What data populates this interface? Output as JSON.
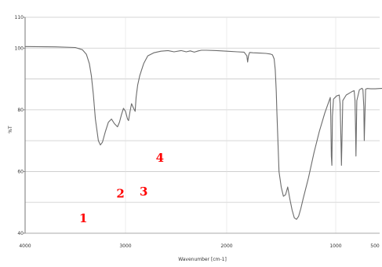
{
  "chart_data": {
    "type": "line",
    "xlabel": "Wavenumber [cm-1]",
    "ylabel": "%T",
    "xlim": [
      4000,
      400
    ],
    "ylim": [
      40,
      110
    ],
    "x_reversed": true,
    "grid": true,
    "colors": {
      "line": "#6b6b6b",
      "grid": "#c9c9c9",
      "annotation": "#ff0000"
    },
    "xticks": [
      {
        "value": 4000,
        "label": "4000"
      },
      {
        "value": 3000,
        "label": "3000"
      },
      {
        "value": 2000,
        "label": "2000"
      },
      {
        "value": 1000,
        "label": "1000"
      },
      {
        "value": 500,
        "label": "500"
      }
    ],
    "yticks": [
      {
        "value": 110,
        "label": "110"
      },
      {
        "value": 100,
        "label": "100"
      },
      {
        "value": 80,
        "label": "80"
      },
      {
        "value": 60,
        "label": "60"
      },
      {
        "value": 40,
        "label": "40"
      }
    ],
    "gridlines_y": [
      110,
      100,
      90,
      80,
      70,
      60,
      50,
      40
    ],
    "series": [
      {
        "x": [
          4000,
          3700,
          3500,
          3430,
          3390,
          3360,
          3340,
          3320,
          3300,
          3270,
          3250,
          3230,
          3200,
          3170,
          3140,
          3110,
          3080,
          3060,
          3040,
          3020,
          3000,
          2980,
          2970,
          2955,
          2940,
          2920,
          2905,
          2895,
          2880,
          2860,
          2840,
          2820,
          2780,
          2720,
          2650,
          2580,
          2520,
          2450,
          2400,
          2360,
          2320,
          2280,
          2250,
          2200,
          2100,
          2000,
          1900,
          1840,
          1815,
          1808,
          1800,
          1790,
          1760,
          1700,
          1640,
          1600,
          1580,
          1565,
          1555,
          1545,
          1540,
          1530,
          1520,
          1500,
          1480,
          1460,
          1440,
          1420,
          1400,
          1380,
          1360,
          1340,
          1320,
          1300,
          1250,
          1200,
          1150,
          1100,
          1080,
          1060,
          1050,
          1045,
          1040,
          1035,
          1030,
          1020,
          990,
          960,
          950,
          940,
          935,
          930,
          920,
          880,
          840,
          810,
          790,
          780,
          775,
          770,
          760,
          730,
          700,
          690,
          680,
          675,
          670,
          660,
          640,
          600,
          550,
          500,
          450,
          420
        ],
        "y": [
          100.5,
          100.4,
          100.2,
          99.5,
          98,
          95,
          91,
          85,
          77,
          70,
          68.6,
          69.5,
          73,
          76,
          77,
          75.5,
          74.5,
          76,
          78.5,
          80.5,
          79.5,
          77,
          76.5,
          79.5,
          82,
          80.5,
          79.5,
          84,
          88,
          91,
          93,
          95,
          97.5,
          98.5,
          99,
          99.2,
          98.8,
          99.2,
          98.8,
          99.1,
          98.7,
          99.1,
          99.3,
          99.3,
          99.2,
          99,
          98.8,
          98.7,
          97.5,
          95.5,
          97.5,
          98.6,
          98.5,
          98.4,
          98.3,
          98.1,
          97.8,
          96.5,
          93,
          86,
          80,
          70,
          60,
          55,
          52,
          52.5,
          55,
          51,
          47.5,
          45,
          44.5,
          45.5,
          48,
          51,
          58,
          66,
          73,
          79,
          81,
          83,
          84,
          78,
          65,
          62,
          78,
          83.5,
          84.5,
          84.8,
          82,
          70,
          62,
          68,
          83,
          84.8,
          85.5,
          86,
          86.2,
          83,
          75,
          65,
          83,
          86.5,
          87,
          86.5,
          81,
          70,
          76,
          86.7,
          86.9,
          86.8,
          86.8,
          86.9,
          87,
          87
        ]
      }
    ],
    "annotations": [
      {
        "label": "4",
        "x": 2660,
        "y": 63.2
      },
      {
        "label": "2",
        "x": 3050,
        "y": 51.6
      },
      {
        "label": "3",
        "x": 2820,
        "y": 52.2
      },
      {
        "label": "1",
        "x": 3420,
        "y": 43.6
      }
    ]
  }
}
